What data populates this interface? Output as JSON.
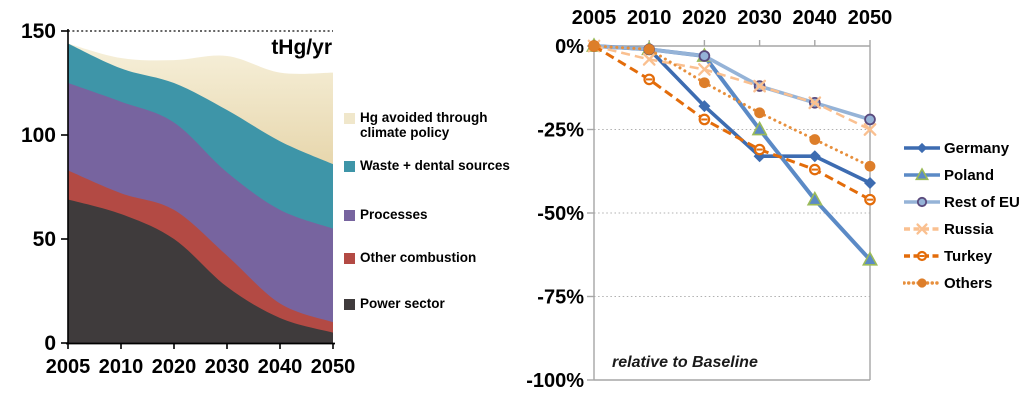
{
  "chart_data": [
    {
      "id": "hg-emissions-stacked-area",
      "type": "area",
      "unit_label": "tHg/yr",
      "categories": [
        "2005",
        "2010",
        "2020",
        "2030",
        "2040",
        "2050"
      ],
      "series": [
        {
          "name": "Power sector",
          "color": "#3f3b3c",
          "values": [
            69,
            62,
            50,
            27,
            12,
            5
          ]
        },
        {
          "name": "Other combustion",
          "color": "#b34a44",
          "values": [
            14,
            10,
            14,
            15,
            7,
            5
          ]
        },
        {
          "name": "Processes",
          "color": "#77649f",
          "values": [
            42,
            44,
            42,
            40,
            45,
            45
          ]
        },
        {
          "name": "Waste + dental sources",
          "color": "#3e95a8",
          "values": [
            19,
            16,
            19,
            30,
            33,
            31
          ]
        },
        {
          "name": "Hg avoided through climate policy",
          "color": "#eadfbd",
          "legend_color": "#f0e7cb",
          "values": [
            0,
            5,
            11,
            26,
            33,
            44
          ]
        }
      ],
      "ylim": [
        0,
        150
      ],
      "yticks": [
        {
          "label": "0",
          "value": 0
        },
        {
          "label": "50",
          "value": 50
        },
        {
          "label": "100",
          "value": 100
        },
        {
          "label": "150",
          "value": 150
        }
      ],
      "legend_position": "right",
      "grid": "dotted top line at 150"
    },
    {
      "id": "reduction-relative-to-baseline-lines",
      "type": "line",
      "annotation": "relative to Baseline",
      "x": [
        "2005",
        "2010",
        "2020",
        "2030",
        "2040",
        "2050"
      ],
      "ylim": [
        -100,
        0
      ],
      "yticks": [
        {
          "label": "0%",
          "value": 0
        },
        {
          "label": "-25%",
          "value": -25
        },
        {
          "label": "-50%",
          "value": -50
        },
        {
          "label": "-75%",
          "value": -75
        },
        {
          "label": "-100%",
          "value": -100
        }
      ],
      "series": [
        {
          "name": "Germany",
          "color": "#3d6cb1",
          "marker": "diamond",
          "dash": "solid",
          "values": [
            0,
            -1,
            -18,
            -33,
            -33,
            -41
          ]
        },
        {
          "name": "Poland",
          "color": "#5b8ac6",
          "marker": "triangle",
          "marker_stroke": "#9bbb59",
          "dash": "solid",
          "values": [
            0,
            -1,
            -3,
            -25,
            -46,
            -64
          ]
        },
        {
          "name": "Rest of EU",
          "color": "#95b3d7",
          "marker": "circle",
          "marker_fill": "#95b3d7",
          "marker_stroke": "#5a4a7d",
          "dash": "solid",
          "values": [
            0,
            -1,
            -3,
            -12,
            -17,
            -22
          ]
        },
        {
          "name": "Russia",
          "color": "#fac090",
          "marker": "x",
          "dash": "dashed",
          "values": [
            0,
            -4,
            -7,
            -12,
            -17,
            -25
          ]
        },
        {
          "name": "Turkey",
          "color": "#e36c0a",
          "marker": "circle-dash",
          "dash": "dashed",
          "values": [
            0,
            -10,
            -22,
            -31,
            -37,
            -46
          ]
        },
        {
          "name": "Others",
          "color": "#e78f3c",
          "marker": "dot",
          "marker_fill": "#dd7e2a",
          "dash": "dotted",
          "values": [
            0,
            -1,
            -11,
            -20,
            -28,
            -36
          ]
        }
      ],
      "legend_position": "right",
      "grid": "dotted horizontal lines at -25, -50, -75"
    }
  ]
}
